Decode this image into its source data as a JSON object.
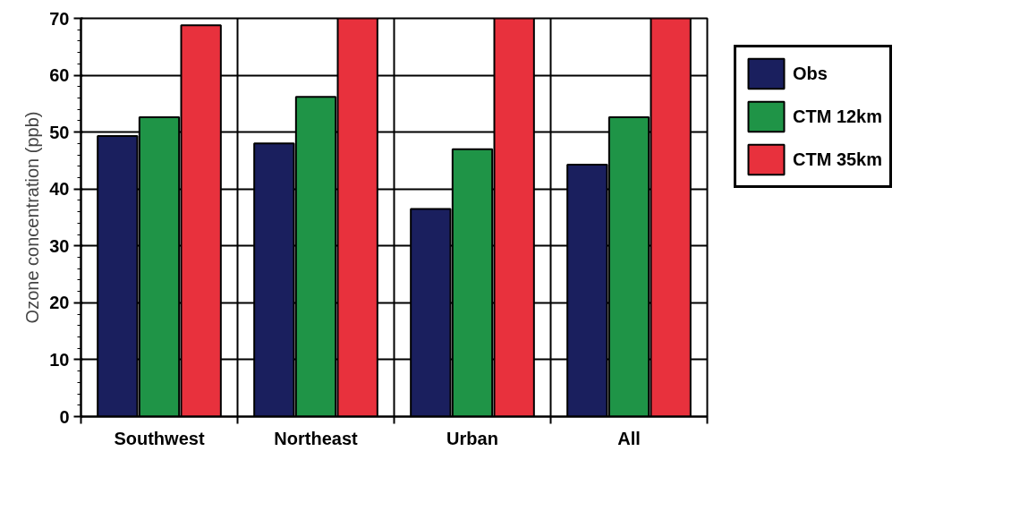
{
  "chart_data": {
    "type": "bar",
    "ylabel": "Ozone concentration (ppb)",
    "categories": [
      "Southwest",
      "Northeast",
      "Urban",
      "All"
    ],
    "series": [
      {
        "name": "Obs",
        "color": "#1a1f5e",
        "values": [
          49.3,
          48.0,
          36.5,
          44.3
        ]
      },
      {
        "name": "CTM 12km",
        "color": "#1f9447",
        "values": [
          52.6,
          56.2,
          47.0,
          52.6
        ]
      },
      {
        "name": "CTM 35km",
        "color": "#e8313d",
        "values": [
          68.8,
          70,
          70,
          70
        ]
      }
    ],
    "ylim": [
      0,
      70
    ],
    "yticks": [
      0,
      10,
      20,
      30,
      40,
      50,
      60,
      70
    ],
    "grid": true,
    "legend": "top right"
  }
}
